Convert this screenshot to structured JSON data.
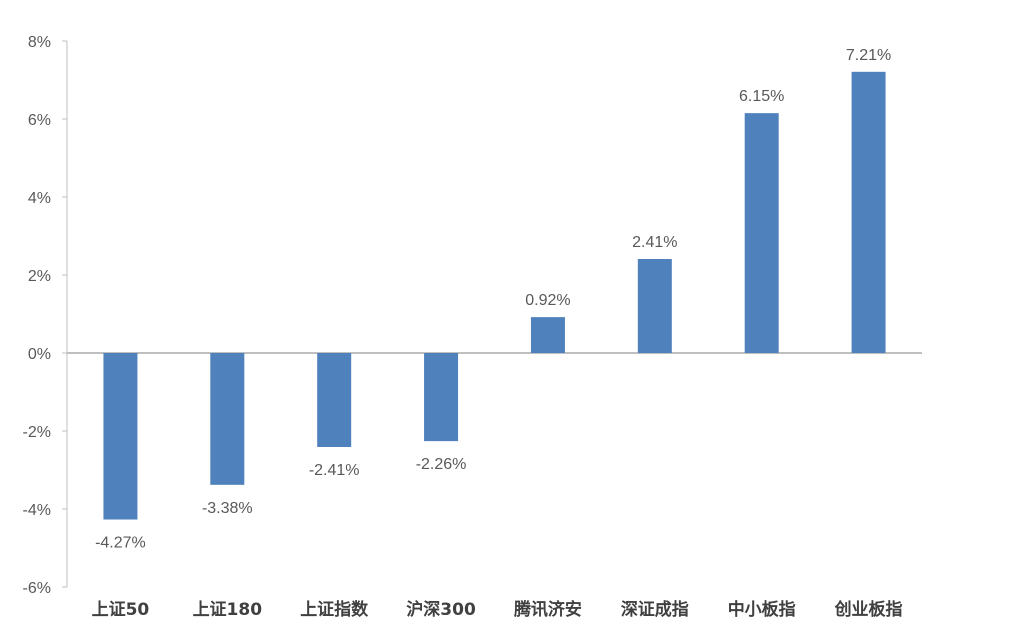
{
  "chart_data": {
    "type": "bar",
    "categories": [
      "上证50",
      "上证180",
      "上证指数",
      "沪深300",
      "腾讯济安",
      "深证成指",
      "中小板指",
      "创业板指"
    ],
    "values": [
      -4.27,
      -3.38,
      -2.41,
      -2.26,
      0.92,
      2.41,
      6.15,
      7.21
    ],
    "data_labels": [
      "-4.27%",
      "-3.38%",
      "-2.41%",
      "-2.26%",
      "0.92%",
      "2.41%",
      "6.15%",
      "7.21%"
    ],
    "y_ticks": [
      -6,
      -4,
      -2,
      0,
      2,
      4,
      6,
      8
    ],
    "y_tick_labels": [
      "-6%",
      "-4%",
      "-2%",
      "0%",
      "2%",
      "4%",
      "6%",
      "8%"
    ],
    "ylim": [
      -6,
      8
    ],
    "title": "",
    "xlabel": "",
    "ylabel": "",
    "grid": false,
    "legend": "none",
    "bar_color": "#4f81bd",
    "axis_color": "#bfbfbf"
  }
}
